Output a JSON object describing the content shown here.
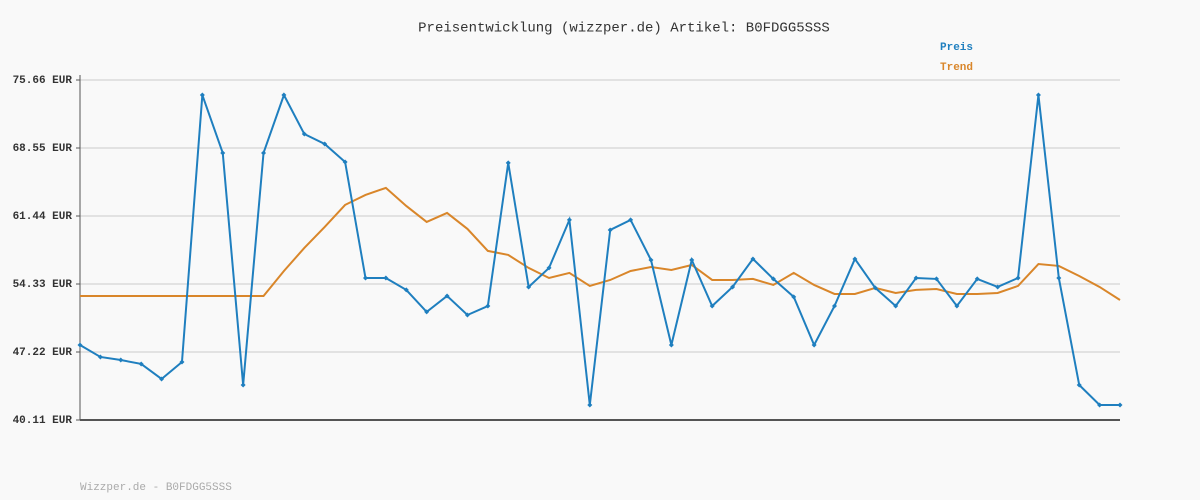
{
  "chart_data": {
    "type": "line",
    "title": "Preisentwicklung (wizzper.de) Artikel: B0FDGG5SSS",
    "footer": "Wizzper.de - B0FDGG5SSS",
    "series": [
      {
        "name": "Preis",
        "color": "#1f7fbf",
        "markers": true,
        "values": [
          47.95,
          46.7,
          46.38,
          45.97,
          44.4,
          46.17,
          74.09,
          68.03,
          43.77,
          68.03,
          74.09,
          70.01,
          68.97,
          67.09,
          54.96,
          54.96,
          53.71,
          51.41,
          53.08,
          51.09,
          52.03,
          66.99,
          54.02,
          56.01,
          61.03,
          41.68,
          59.98,
          61.03,
          56.84,
          47.95,
          56.84,
          52.03,
          54.02,
          56.95,
          54.86,
          52.98,
          47.95,
          52.03,
          56.95,
          53.92,
          52.03,
          54.96,
          54.86,
          52.03,
          54.86,
          54.02,
          54.96,
          74.09,
          54.96,
          43.77,
          41.68,
          41.68
        ]
      },
      {
        "name": "Trend",
        "color": "#d9862a",
        "markers": false,
        "values": [
          53.08,
          53.08,
          53.08,
          53.08,
          53.08,
          53.08,
          53.08,
          53.08,
          53.08,
          53.08,
          55.69,
          58.1,
          60.3,
          62.6,
          63.64,
          64.38,
          62.49,
          60.82,
          61.76,
          60.09,
          57.79,
          57.37,
          56.01,
          54.96,
          55.49,
          54.13,
          54.75,
          55.69,
          56.11,
          55.8,
          56.32,
          54.75,
          54.75,
          54.86,
          54.23,
          55.49,
          54.23,
          53.29,
          53.29,
          53.92,
          53.39,
          53.71,
          53.81,
          53.29,
          53.29,
          53.39,
          54.13,
          56.42,
          56.22,
          55.17,
          54.02,
          52.66
        ]
      }
    ],
    "ylim": [
      40.11,
      75.66
    ],
    "yticks": [
      {
        "value": 40.11,
        "label": "40.11 EUR"
      },
      {
        "value": 47.22,
        "label": "47.22 EUR"
      },
      {
        "value": 54.33,
        "label": "54.33 EUR"
      },
      {
        "value": 61.44,
        "label": "61.44 EUR"
      },
      {
        "value": 68.55,
        "label": "68.55 EUR"
      },
      {
        "value": 75.66,
        "label": "75.66 EUR"
      }
    ],
    "grid": true,
    "legend": "top-right"
  }
}
